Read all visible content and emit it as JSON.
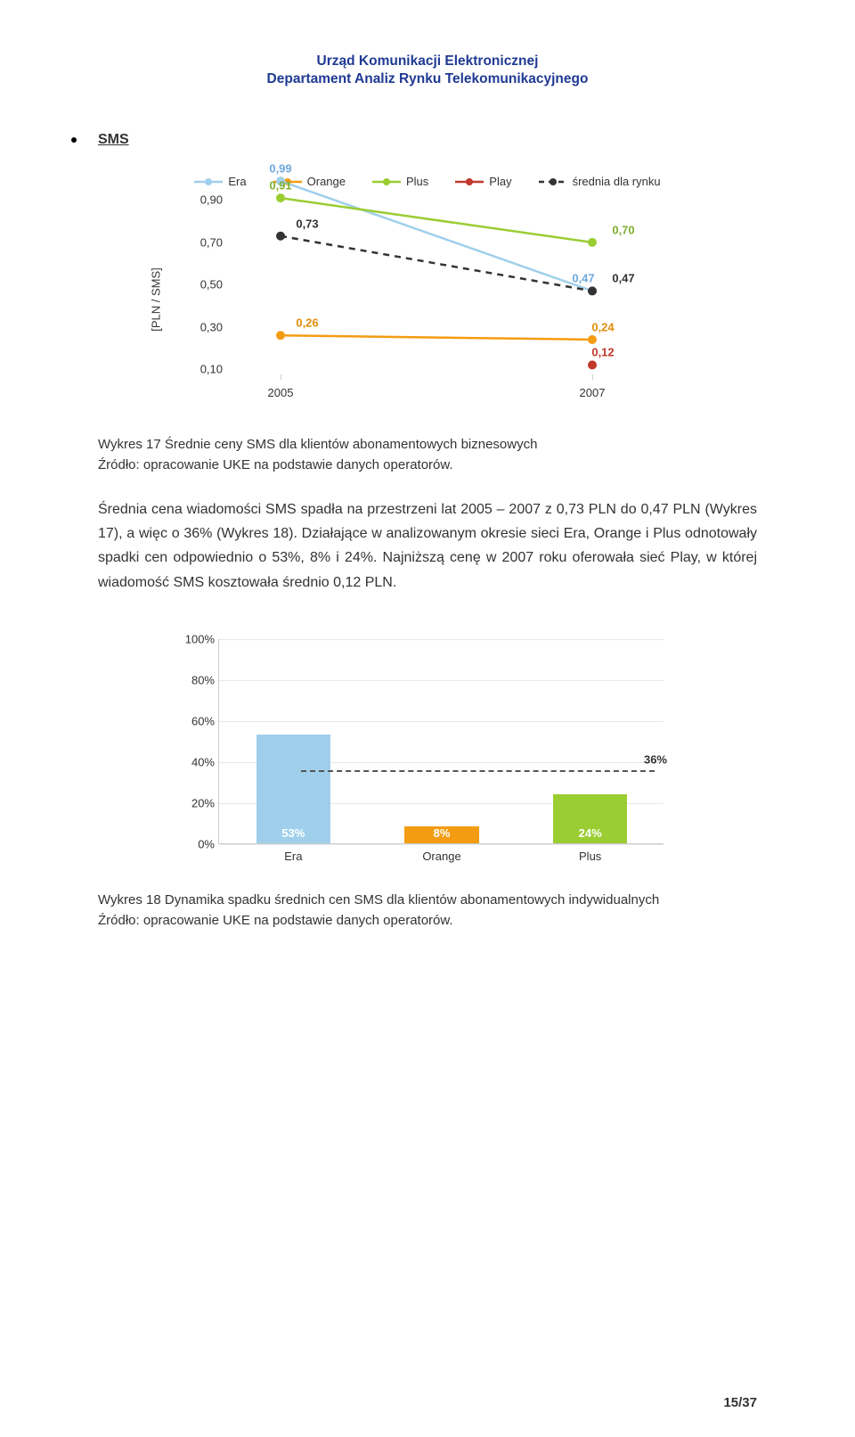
{
  "header": {
    "line1": "Urząd Komunikacji Elektronicznej",
    "line2": "Departament Analiz Rynku Telekomunikacyjnego"
  },
  "section_bullet": "SMS",
  "line_chart": {
    "type": "line",
    "ylabel": "[PLN / SMS]",
    "x_categories": [
      "2005",
      "2007"
    ],
    "y_ticks": [
      "0,10",
      "0,30",
      "0,50",
      "0,70",
      "0,90"
    ],
    "y_min": 0.1,
    "y_max": 0.9,
    "series": [
      {
        "name": "Era",
        "color": "#A0CFEB",
        "values": [
          0.99,
          0.47
        ],
        "marker": "circle"
      },
      {
        "name": "Orange",
        "color": "#F39C12",
        "values": [
          0.26,
          0.24
        ],
        "marker": "circle"
      },
      {
        "name": "Plus",
        "color": "#9ACD32",
        "values": [
          0.91,
          0.7
        ],
        "marker": "circle"
      },
      {
        "name": "Play",
        "color": "#C0392B",
        "values": [
          null,
          0.12
        ],
        "marker": "circle"
      },
      {
        "name": "średnia dla rynku",
        "color": "#333333",
        "values": [
          0.73,
          0.47
        ],
        "marker": "circle",
        "dashed": true
      }
    ],
    "data_labels": [
      {
        "text": "0,99",
        "color": "#6FA8DC",
        "x": 0,
        "y_above": 0.99
      },
      {
        "text": "0,91",
        "color": "#7FAF2F",
        "x": 0,
        "y_above": 0.91
      },
      {
        "text": "0,73",
        "color": "#333333",
        "x": 0,
        "y_above": 0.73,
        "dx": 30
      },
      {
        "text": "0,26",
        "color": "#E08E0B",
        "x": 0,
        "y_above": 0.26,
        "dx": 30
      },
      {
        "text": "0,70",
        "color": "#7FAF2F",
        "x": 1,
        "y_above": 0.7,
        "dx": 35
      },
      {
        "text": "0,47",
        "color": "#6FA8DC",
        "x": 1,
        "y_above": 0.47,
        "dx": -10
      },
      {
        "text": "0,47",
        "color": "#333333",
        "x": 1,
        "y_above": 0.47,
        "dx": 35
      },
      {
        "text": "0,24",
        "color": "#E08E0B",
        "x": 1,
        "y_above": 0.24,
        "dx": 12
      },
      {
        "text": "0,12",
        "color": "#C0392B",
        "x": 1,
        "y_above": 0.12,
        "dx": 12
      }
    ],
    "label_fontsize": 13
  },
  "caption1": "Wykres 17 Średnie ceny SMS dla klientów abonamentowych biznesowych",
  "source_text": "Źródło: opracowanie UKE na podstawie danych operatorów.",
  "paragraph": "Średnia cena wiadomości SMS spadła na przestrzeni lat 2005 – 2007 z 0,73 PLN do 0,47 PLN (Wykres 17), a więc o 36% (Wykres 18). Działające w analizowanym okresie sieci Era, Orange i Plus odnotowały spadki cen odpowiednio o 53%, 8% i 24%. Najniższą cenę w 2007 roku oferowała sieć Play, w której wiadomość SMS kosztowała średnio 0,12 PLN.",
  "bar_chart": {
    "type": "bar",
    "y_ticks": [
      "0%",
      "20%",
      "40%",
      "60%",
      "80%",
      "100%"
    ],
    "y_min": 0,
    "y_max": 100,
    "categories": [
      "Era",
      "Orange",
      "Plus"
    ],
    "values": [
      53,
      8,
      24
    ],
    "value_labels": [
      "53%",
      "8%",
      "24%"
    ],
    "bar_colors": [
      "#A0CFEB",
      "#F39C12",
      "#9ACD32"
    ],
    "label_colors": [
      "#ffffff",
      "#ffffff",
      "#ffffff"
    ],
    "bar_width": 0.5,
    "avg_value": 36,
    "avg_label": "36%",
    "avg_color": "#555555",
    "label_fontsize": 13
  },
  "caption2": "Wykres 18 Dynamika spadku średnich cen SMS dla klientów abonamentowych indywidualnych",
  "page_number": "15/37"
}
